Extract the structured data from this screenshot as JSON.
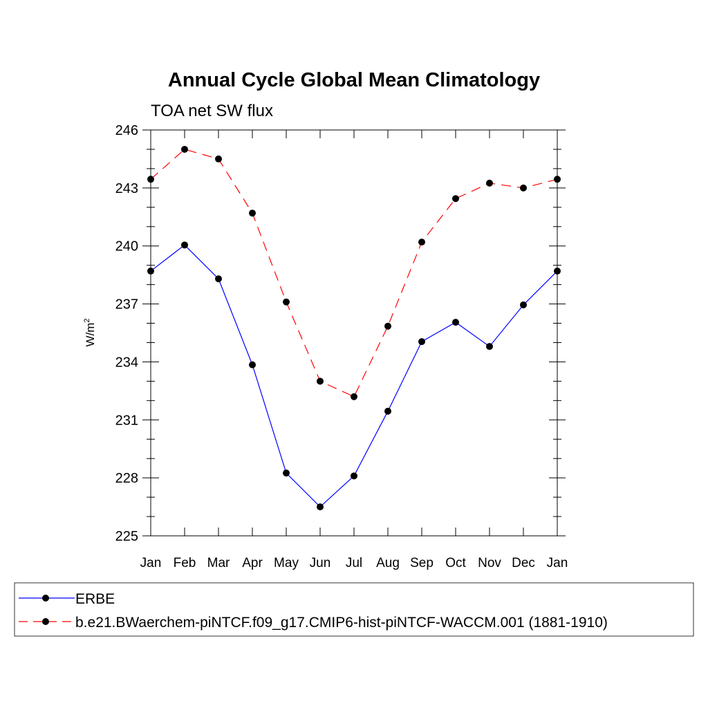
{
  "chart_data": {
    "type": "line",
    "title": "Annual Cycle Global Mean Climatology",
    "subtitle": "TOA net SW flux",
    "ylabel": "W/m",
    "ylabel_superscript": "2",
    "xlabel": "",
    "categories": [
      "Jan",
      "Feb",
      "Mar",
      "Apr",
      "May",
      "Jun",
      "Jul",
      "Aug",
      "Sep",
      "Oct",
      "Nov",
      "Dec",
      "Jan"
    ],
    "ylim": [
      225,
      246
    ],
    "yticks": [
      225,
      228,
      231,
      234,
      237,
      240,
      243,
      246
    ],
    "ytick_labels": [
      "225",
      "228",
      "231",
      "234",
      "237",
      "240",
      "243",
      "246"
    ],
    "grid": false,
    "legend_position": "bottom",
    "series": [
      {
        "name": "ERBE",
        "color": "#0000ff",
        "line_style": "solid",
        "marker": "filled-circle",
        "values": [
          238.7,
          240.05,
          238.3,
          233.85,
          228.25,
          226.5,
          228.1,
          231.45,
          235.05,
          236.05,
          234.8,
          236.95,
          238.7
        ]
      },
      {
        "name": "b.e21.BWaerchem-piNTCF.f09_g17.CMIP6-hist-piNTCF-WACCM.001 (1881-1910)",
        "color": "#ff0000",
        "line_style": "dashed",
        "marker": "filled-circle",
        "values": [
          243.45,
          245.0,
          244.5,
          241.7,
          237.1,
          233.0,
          232.2,
          235.85,
          240.2,
          242.45,
          243.25,
          243.0,
          243.45
        ]
      }
    ]
  }
}
